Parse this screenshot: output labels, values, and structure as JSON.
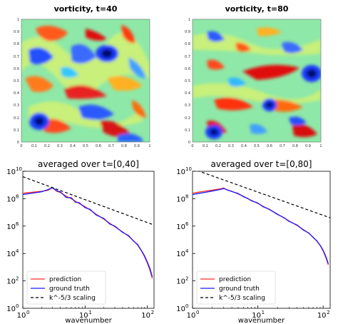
{
  "colors": {
    "prediction": "#ff2a2a",
    "ground_truth": "#1a1aff",
    "scaling": "#000000",
    "background": "#ffffff"
  },
  "chart_data": [
    {
      "type": "heatmap",
      "title": "vorticity, t=40",
      "colormap": "jet",
      "xlim": [
        0,
        1
      ],
      "ylim": [
        0,
        1
      ],
      "xticks": [
        "0",
        "0.1",
        "0.2",
        "0.3",
        "0.4",
        "0.5",
        "0.6",
        "0.7",
        "0.8",
        "0.9",
        "1"
      ],
      "yticks": [
        "0",
        "0.1",
        "0.2",
        "0.3",
        "0.4",
        "0.5",
        "0.6",
        "0.7",
        "0.8",
        "0.9",
        "1"
      ]
    },
    {
      "type": "heatmap",
      "title": "vorticity, t=80",
      "colormap": "jet",
      "xlim": [
        0,
        1
      ],
      "ylim": [
        0,
        1
      ],
      "xticks": [
        "0",
        "0.1",
        "0.2",
        "0.3",
        "0.4",
        "0.5",
        "0.6",
        "0.7",
        "0.8",
        "0.9",
        "1"
      ],
      "yticks": [
        "0",
        "0.1",
        "0.2",
        "0.3",
        "0.4",
        "0.5",
        "0.6",
        "0.7",
        "0.8",
        "0.9",
        "1"
      ]
    },
    {
      "type": "line",
      "title": "averaged over t=[0,40]",
      "xlabel": "wavenumber",
      "ylabel": "",
      "xscale": "log",
      "yscale": "log",
      "xlim": [
        1,
        128
      ],
      "ylim": [
        1,
        10000000000.0
      ],
      "xticks": [
        {
          "base": "10",
          "exp": "0",
          "value": 1
        },
        {
          "base": "10",
          "exp": "1",
          "value": 10
        },
        {
          "base": "10",
          "exp": "2",
          "value": 100
        }
      ],
      "yticks": [
        {
          "base": "10",
          "exp": "0",
          "value": 1
        },
        {
          "base": "10",
          "exp": "2",
          "value": 100
        },
        {
          "base": "10",
          "exp": "4",
          "value": 10000
        },
        {
          "base": "10",
          "exp": "6",
          "value": 1000000
        },
        {
          "base": "10",
          "exp": "8",
          "value": 100000000
        },
        {
          "base": "10",
          "exp": "10",
          "value": 10000000000
        }
      ],
      "legend_position": "bottom-left",
      "series": [
        {
          "name": "prediction",
          "style": "solid",
          "color": "#ff2a2a",
          "x": [
            1,
            1.5,
            2,
            2.5,
            3,
            3.5,
            4,
            5,
            6,
            7,
            8,
            10,
            12,
            15,
            20,
            25,
            30,
            40,
            50,
            60,
            70,
            80,
            90,
            100,
            110,
            120
          ],
          "y": [
            250000000.0,
            300000000.0,
            350000000.0,
            400000000.0,
            620000000.0,
            350000000.0,
            280000000.0,
            150000000.0,
            100000000.0,
            65000000.0,
            45000000.0,
            26000000.0,
            15000000.0,
            7500000.0,
            3200000.0,
            1600000.0,
            900000.0,
            380000.0,
            180000.0,
            85000.0,
            40000.0,
            16000.0,
            6000.0,
            2000.0,
            600.0,
            150.0
          ]
        },
        {
          "name": "ground truth",
          "style": "solid",
          "color": "#1a1aff",
          "x": [
            1,
            1.5,
            2,
            2.5,
            3,
            3.5,
            4,
            5,
            6,
            7,
            8,
            10,
            12,
            15,
            20,
            25,
            30,
            40,
            50,
            60,
            70,
            80,
            90,
            100,
            110,
            120
          ],
          "y": [
            200000000.0,
            260000000.0,
            320000000.0,
            450000000.0,
            650000000.0,
            380000000.0,
            320000000.0,
            120000000.0,
            120000000.0,
            55000000.0,
            52000000.0,
            22000000.0,
            17000000.0,
            6500000.0,
            3600000.0,
            1400000.0,
            1000000.0,
            350000.0,
            200000.0,
            80000.0,
            45000.0,
            17000.0,
            7000.0,
            2400.0,
            800.0,
            200.0
          ]
        },
        {
          "name": "k^-5/3 scaling",
          "style": "dashed",
          "color": "#000000",
          "x": [
            1,
            128
          ],
          "y": [
            4000000000.0,
            1200000.0
          ]
        }
      ]
    },
    {
      "type": "line",
      "title": "averaged over t=[0,80]",
      "xlabel": "wavenumber",
      "ylabel": "",
      "xscale": "log",
      "yscale": "log",
      "xlim": [
        1,
        128
      ],
      "ylim": [
        1,
        10000000000.0
      ],
      "xticks": [
        {
          "base": "10",
          "exp": "0",
          "value": 1
        },
        {
          "base": "10",
          "exp": "1",
          "value": 10
        },
        {
          "base": "10",
          "exp": "2",
          "value": 100
        }
      ],
      "yticks": [
        {
          "base": "10",
          "exp": "0",
          "value": 1
        },
        {
          "base": "10",
          "exp": "2",
          "value": 100
        },
        {
          "base": "10",
          "exp": "4",
          "value": 10000
        },
        {
          "base": "10",
          "exp": "6",
          "value": 1000000
        },
        {
          "base": "10",
          "exp": "8",
          "value": 100000000
        },
        {
          "base": "10",
          "exp": "10",
          "value": 10000000000
        }
      ],
      "legend_position": "bottom-left",
      "series": [
        {
          "name": "prediction",
          "style": "solid",
          "color": "#ff2a2a",
          "x": [
            1,
            1.5,
            2,
            2.5,
            3,
            3.5,
            4,
            5,
            6,
            7,
            8,
            10,
            12,
            15,
            20,
            25,
            30,
            40,
            50,
            60,
            70,
            80,
            90,
            100,
            110,
            120
          ],
          "y": [
            250000000.0,
            350000000.0,
            420000000.0,
            500000000.0,
            600000000.0,
            400000000.0,
            350000000.0,
            220000000.0,
            150000000.0,
            100000000.0,
            75000000.0,
            45000000.0,
            28000000.0,
            16000000.0,
            7500000.0,
            4000000.0,
            2400000.0,
            1100000.0,
            550000.0,
            300000.0,
            160000.0,
            80000.0,
            38000.0,
            15000.0,
            5000.0,
            1500.0
          ]
        },
        {
          "name": "ground truth",
          "style": "solid",
          "color": "#1a1aff",
          "x": [
            1,
            1.5,
            2,
            2.5,
            3,
            3.5,
            4,
            5,
            6,
            7,
            8,
            10,
            12,
            15,
            20,
            25,
            30,
            40,
            50,
            60,
            70,
            80,
            90,
            100,
            110,
            120
          ],
          "y": [
            200000000.0,
            280000000.0,
            360000000.0,
            440000000.0,
            550000000.0,
            420000000.0,
            330000000.0,
            240000000.0,
            140000000.0,
            105000000.0,
            70000000.0,
            48000000.0,
            26000000.0,
            17000000.0,
            7000000.0,
            4200000.0,
            2200000.0,
            1200000.0,
            500000.0,
            320000.0,
            150000.0,
            85000.0,
            40000.0,
            17000.0,
            6000.0,
            1800.0
          ]
        },
        {
          "name": "k^-5/3 scaling",
          "style": "dashed",
          "color": "#000000",
          "x": [
            1,
            128
          ],
          "y": [
            15000000000.0,
            4000000.0
          ]
        }
      ]
    }
  ]
}
